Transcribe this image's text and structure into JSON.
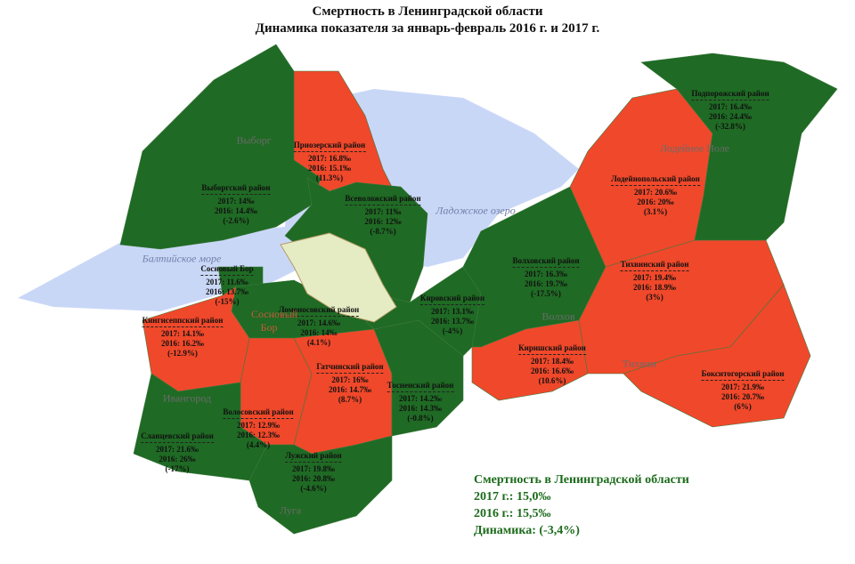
{
  "header": {
    "title_line1": "Смертность в Ленинградской области",
    "title_line2": "Динамика показателя за январь-февраль 2016 г. и 2017 г."
  },
  "districts": [
    {
      "name": "Приозерский район",
      "line2017": "2017: 16.8‰",
      "line2016": "2016: 15.1‰",
      "change": "(11.3%)",
      "color": "#f0482a"
    },
    {
      "name": "Выборгский район",
      "line2017": "2017: 14‰",
      "line2016": "2016: 14.4‰",
      "change": "(-2.6%)",
      "color": "#1f6a24"
    },
    {
      "name": "Всеволожский район",
      "line2017": "2017: 11‰",
      "line2016": "2016: 12‰",
      "change": "(-8.7%)",
      "color": "#1f6a24"
    },
    {
      "name": "Сосновый Бор",
      "line2017": "2017: 11.6‰",
      "line2016": "2016: 13.7‰",
      "change": "(-15%)",
      "color": "#1f6a24"
    },
    {
      "name": "Кингисеппский район",
      "line2017": "2017: 14.1‰",
      "line2016": "2016: 16.2‰",
      "change": "(-12.9%)",
      "color": "#1f6a24"
    },
    {
      "name": "Ломоносовский район",
      "line2017": "2017: 14.6‰",
      "line2016": "2016: 14‰",
      "change": "(4.1%)",
      "color": "#f0482a"
    },
    {
      "name": "Гатчинский район",
      "line2017": "2017: 16‰",
      "line2016": "2016: 14.7‰",
      "change": "(8.7%)",
      "color": "#f0482a"
    },
    {
      "name": "Волосовский район",
      "line2017": "2017: 12.9‰",
      "line2016": "2016: 12.3‰",
      "change": "(4.4%)",
      "color": "#f0482a"
    },
    {
      "name": "Сланцевский район",
      "line2017": "2017: 21.6‰",
      "line2016": "2016: 26‰",
      "change": "(-17%)",
      "color": "#1f6a24"
    },
    {
      "name": "Лужский район",
      "line2017": "2017: 19.8‰",
      "line2016": "2016: 20.8‰",
      "change": "(-4.6%)",
      "color": "#1f6a24"
    },
    {
      "name": "Тосненский район",
      "line2017": "2017: 14.2‰",
      "line2016": "2016: 14.3‰",
      "change": "(-0.8%)",
      "color": "#1f6a24"
    },
    {
      "name": "Кировский район",
      "line2017": "2017: 13.1‰",
      "line2016": "2016: 13.7‰",
      "change": "(-4%)",
      "color": "#1f6a24"
    },
    {
      "name": "Волховский район",
      "line2017": "2017: 16.3‰",
      "line2016": "2016: 19.7‰",
      "change": "(-17.5%)",
      "color": "#1f6a24"
    },
    {
      "name": "Киришский район",
      "line2017": "2017: 18.4‰",
      "line2016": "2016: 16.6‰",
      "change": "(10.6%)",
      "color": "#f0482a"
    },
    {
      "name": "Тихвинский район",
      "line2017": "2017: 19.4‰",
      "line2016": "2016: 18.9‰",
      "change": "(3%)",
      "color": "#f0482a"
    },
    {
      "name": "Лодейнопольский район",
      "line2017": "2017: 20.6‰",
      "line2016": "2016: 20‰",
      "change": "(3.1%)",
      "color": "#f0482a"
    },
    {
      "name": "Подпорожский район",
      "line2017": "2017: 16.4‰",
      "line2016": "2016: 24.4‰",
      "change": "(-32.8%)",
      "color": "#1f6a24"
    },
    {
      "name": "Бокситогорский район",
      "line2017": "2017: 21.9‰",
      "line2016": "2016: 20.7‰",
      "change": "(6%)",
      "color": "#f0482a"
    }
  ],
  "places": [
    "Выборг",
    "Лодейное Поле",
    "Волхов",
    "Тихвин",
    "Ивангород",
    "Луга",
    "Сосновый Бор"
  ],
  "water": [
    "Ладожское озеро",
    "Балтийское море"
  ],
  "summary": {
    "title": "Смертность в Ленинградской области",
    "line2017": "2017 г.: 15,0‰",
    "line2016": "2016 г.: 15,5‰",
    "dynamics": "Динамика: (-3,4%)"
  }
}
